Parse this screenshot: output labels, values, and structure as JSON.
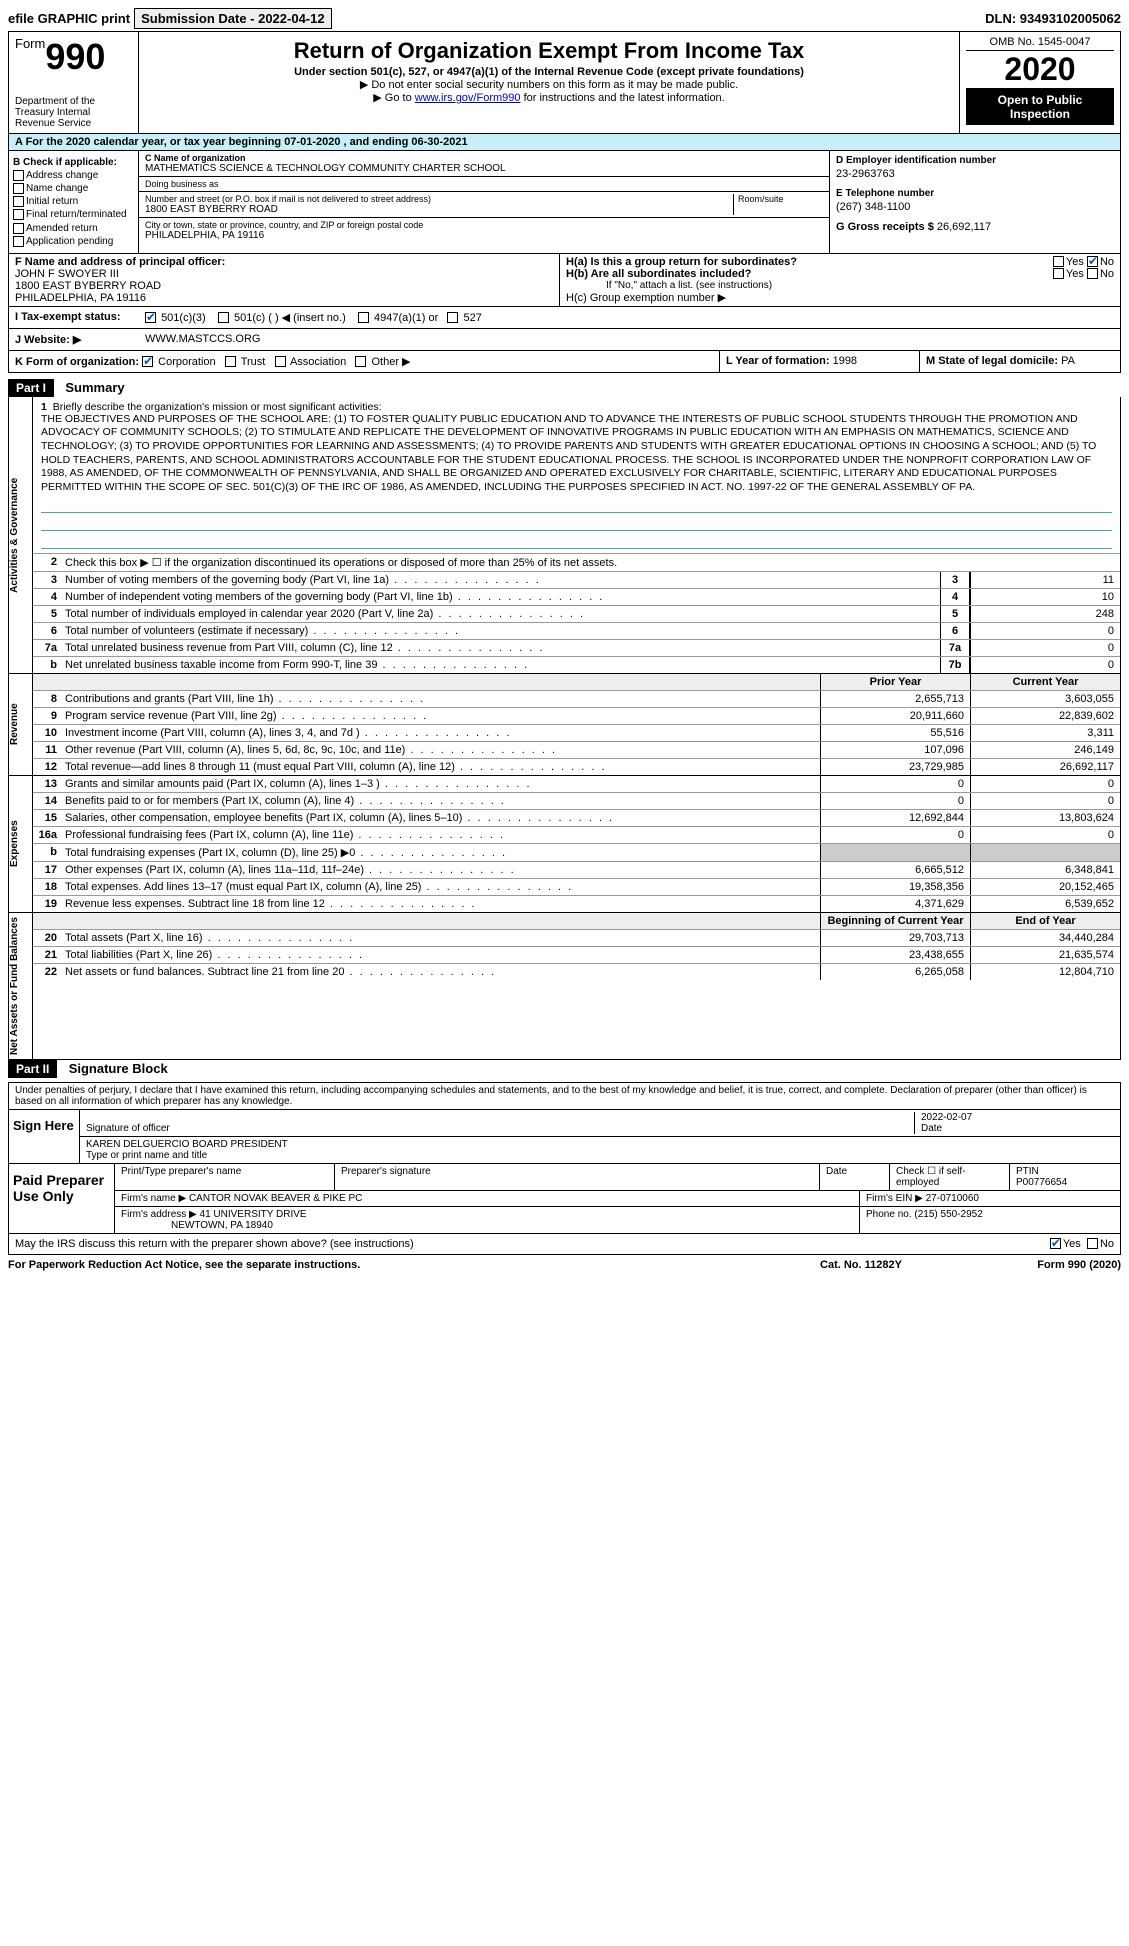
{
  "top": {
    "efile": "efile GRAPHIC print",
    "submission_label": "Submission Date - 2022-04-12",
    "dln": "DLN: 93493102005062"
  },
  "header": {
    "form_label": "Form",
    "form_no": "990",
    "title": "Return of Organization Exempt From Income Tax",
    "subtitle": "Under section 501(c), 527, or 4947(a)(1) of the Internal Revenue Code (except private foundations)",
    "note1": "▶ Do not enter social security numbers on this form as it may be made public.",
    "note2_pre": "▶ Go to ",
    "note2_link": "www.irs.gov/Form990",
    "note2_post": " for instructions and the latest information.",
    "dept": "Department of the Treasury\nInternal Revenue Service",
    "omb": "OMB No. 1545-0047",
    "year": "2020",
    "open": "Open to Public Inspection"
  },
  "period": "A For the 2020 calendar year, or tax year beginning 07-01-2020   , and ending 06-30-2021",
  "section_b": {
    "heading": "B Check if applicable:",
    "items": [
      "Address change",
      "Name change",
      "Initial return",
      "Final return/terminated",
      "Amended return",
      "Application pending"
    ]
  },
  "section_c": {
    "name_lbl": "C Name of organization",
    "name": "MATHEMATICS SCIENCE & TECHNOLOGY COMMUNITY CHARTER SCHOOL",
    "dba_lbl": "Doing business as",
    "dba": "",
    "addr_lbl": "Number and street (or P.O. box if mail is not delivered to street address)",
    "room_lbl": "Room/suite",
    "addr": "1800 EAST BYBERRY ROAD",
    "city_lbl": "City or town, state or province, country, and ZIP or foreign postal code",
    "city": "PHILADELPHIA, PA  19116"
  },
  "section_d": {
    "ein_lbl": "D Employer identification number",
    "ein": "23-2963763",
    "tel_lbl": "E Telephone number",
    "tel": "(267) 348-1100",
    "gross_lbl": "G Gross receipts $",
    "gross": "26,692,117"
  },
  "section_f": {
    "lbl": "F  Name and address of principal officer:",
    "name": "JOHN F SWOYER III",
    "addr1": "1800 EAST BYBERRY ROAD",
    "addr2": "PHILADELPHIA, PA  19116"
  },
  "section_h": {
    "ha": "H(a)  Is this a group return for subordinates?",
    "hb": "H(b)  Are all subordinates included?",
    "hb_note": "If \"No,\" attach a list. (see instructions)",
    "hc": "H(c)  Group exemption number ▶",
    "yes": "Yes",
    "no": "No"
  },
  "tax_status": {
    "lbl": "I  Tax-exempt status:",
    "opts": [
      "501(c)(3)",
      "501(c) (  ) ◀ (insert no.)",
      "4947(a)(1) or",
      "527"
    ]
  },
  "website": {
    "lbl": "J  Website: ▶",
    "val": "WWW.MASTCCS.ORG"
  },
  "k_row": {
    "k": "K Form of organization:",
    "opts": [
      "Corporation",
      "Trust",
      "Association",
      "Other ▶"
    ],
    "l_lbl": "L Year of formation:",
    "l_val": "1998",
    "m_lbl": "M State of legal domicile:",
    "m_val": "PA"
  },
  "part1": {
    "hdr": "Part I",
    "title": "Summary",
    "side_gov": "Activities & Governance",
    "side_rev": "Revenue",
    "side_exp": "Expenses",
    "side_net": "Net Assets or Fund Balances",
    "q1_lbl": "Briefly describe the organization's mission or most significant activities:",
    "q1_txt": "THE OBJECTIVES AND PURPOSES OF THE SCHOOL ARE: (1) TO FOSTER QUALITY PUBLIC EDUCATION AND TO ADVANCE THE INTERESTS OF PUBLIC SCHOOL STUDENTS THROUGH THE PROMOTION AND ADVOCACY OF COMMUNITY SCHOOLS; (2) TO STIMULATE AND REPLICATE THE DEVELOPMENT OF INNOVATIVE PROGRAMS IN PUBLIC EDUCATION WITH AN EMPHASIS ON MATHEMATICS, SCIENCE AND TECHNOLOGY; (3) TO PROVIDE OPPORTUNITIES FOR LEARNING AND ASSESSMENTS; (4) TO PROVIDE PARENTS AND STUDENTS WITH GREATER EDUCATIONAL OPTIONS IN CHOOSING A SCHOOL; AND (5) TO HOLD TEACHERS, PARENTS, AND SCHOOL ADMINISTRATORS ACCOUNTABLE FOR THE STUDENT EDUCATIONAL PROCESS. THE SCHOOL IS INCORPORATED UNDER THE NONPROFIT CORPORATION LAW OF 1988, AS AMENDED, OF THE COMMONWEALTH OF PENNSYLVANIA, AND SHALL BE ORGANIZED AND OPERATED EXCLUSIVELY FOR CHARITABLE, SCIENTIFIC, LITERARY AND EDUCATIONAL PURPOSES PERMITTED WITHIN THE SCOPE OF SEC. 501(C)(3) OF THE IRC OF 1986, AS AMENDED, INCLUDING THE PURPOSES SPECIFIED IN ACT. NO. 1997-22 OF THE GENERAL ASSEMBLY OF PA.",
    "q2": "Check this box ▶ ☐ if the organization discontinued its operations or disposed of more than 25% of its net assets.",
    "lines_gov": [
      {
        "no": "3",
        "desc": "Number of voting members of the governing body (Part VI, line 1a)",
        "box": "3",
        "val": "11"
      },
      {
        "no": "4",
        "desc": "Number of independent voting members of the governing body (Part VI, line 1b)",
        "box": "4",
        "val": "10"
      },
      {
        "no": "5",
        "desc": "Total number of individuals employed in calendar year 2020 (Part V, line 2a)",
        "box": "5",
        "val": "248"
      },
      {
        "no": "6",
        "desc": "Total number of volunteers (estimate if necessary)",
        "box": "6",
        "val": "0"
      },
      {
        "no": "7a",
        "desc": "Total unrelated business revenue from Part VIII, column (C), line 12",
        "box": "7a",
        "val": "0"
      },
      {
        "no": "b",
        "desc": "Net unrelated business taxable income from Form 990-T, line 39",
        "box": "7b",
        "val": "0"
      }
    ],
    "col_hdr_prior": "Prior Year",
    "col_hdr_curr": "Current Year",
    "lines_rev": [
      {
        "no": "8",
        "desc": "Contributions and grants (Part VIII, line 1h)",
        "prior": "2,655,713",
        "curr": "3,603,055"
      },
      {
        "no": "9",
        "desc": "Program service revenue (Part VIII, line 2g)",
        "prior": "20,911,660",
        "curr": "22,839,602"
      },
      {
        "no": "10",
        "desc": "Investment income (Part VIII, column (A), lines 3, 4, and 7d )",
        "prior": "55,516",
        "curr": "3,311"
      },
      {
        "no": "11",
        "desc": "Other revenue (Part VIII, column (A), lines 5, 6d, 8c, 9c, 10c, and 11e)",
        "prior": "107,096",
        "curr": "246,149"
      },
      {
        "no": "12",
        "desc": "Total revenue—add lines 8 through 11 (must equal Part VIII, column (A), line 12)",
        "prior": "23,729,985",
        "curr": "26,692,117"
      }
    ],
    "lines_exp": [
      {
        "no": "13",
        "desc": "Grants and similar amounts paid (Part IX, column (A), lines 1–3 )",
        "prior": "0",
        "curr": "0"
      },
      {
        "no": "14",
        "desc": "Benefits paid to or for members (Part IX, column (A), line 4)",
        "prior": "0",
        "curr": "0"
      },
      {
        "no": "15",
        "desc": "Salaries, other compensation, employee benefits (Part IX, column (A), lines 5–10)",
        "prior": "12,692,844",
        "curr": "13,803,624"
      },
      {
        "no": "16a",
        "desc": "Professional fundraising fees (Part IX, column (A), line 11e)",
        "prior": "0",
        "curr": "0"
      },
      {
        "no": "b",
        "desc": "Total fundraising expenses (Part IX, column (D), line 25) ▶0",
        "prior": "",
        "curr": "",
        "shade": true
      },
      {
        "no": "17",
        "desc": "Other expenses (Part IX, column (A), lines 11a–11d, 11f–24e)",
        "prior": "6,665,512",
        "curr": "6,348,841"
      },
      {
        "no": "18",
        "desc": "Total expenses. Add lines 13–17 (must equal Part IX, column (A), line 25)",
        "prior": "19,358,356",
        "curr": "20,152,465"
      },
      {
        "no": "19",
        "desc": "Revenue less expenses. Subtract line 18 from line 12",
        "prior": "4,371,629",
        "curr": "6,539,652"
      }
    ],
    "col_hdr_begin": "Beginning of Current Year",
    "col_hdr_end": "End of Year",
    "lines_net": [
      {
        "no": "20",
        "desc": "Total assets (Part X, line 16)",
        "prior": "29,703,713",
        "curr": "34,440,284"
      },
      {
        "no": "21",
        "desc": "Total liabilities (Part X, line 26)",
        "prior": "23,438,655",
        "curr": "21,635,574"
      },
      {
        "no": "22",
        "desc": "Net assets or fund balances. Subtract line 21 from line 20",
        "prior": "6,265,058",
        "curr": "12,804,710"
      }
    ]
  },
  "part2": {
    "hdr": "Part II",
    "title": "Signature Block",
    "decl": "Under penalties of perjury, I declare that I have examined this return, including accompanying schedules and statements, and to the best of my knowledge and belief, it is true, correct, and complete. Declaration of preparer (other than officer) is based on all information of which preparer has any knowledge.",
    "sign_here": "Sign Here",
    "sig_officer_lbl": "Signature of officer",
    "date_lbl": "Date",
    "date_val": "2022-02-07",
    "name_title": "KAREN DELGUERCIO  BOARD PRESIDENT",
    "name_title_lbl": "Type or print name and title",
    "paid_lbl": "Paid Preparer Use Only",
    "prep_name_lbl": "Print/Type preparer's name",
    "prep_sig_lbl": "Preparer's signature",
    "prep_date_lbl": "Date",
    "prep_self_lbl": "Check ☐ if self-employed",
    "ptin_lbl": "PTIN",
    "ptin": "P00776654",
    "firm_name_lbl": "Firm's name    ▶",
    "firm_name": "CANTOR NOVAK BEAVER & PIKE PC",
    "firm_ein_lbl": "Firm's EIN ▶",
    "firm_ein": "27-0710060",
    "firm_addr_lbl": "Firm's address ▶",
    "firm_addr1": "41 UNIVERSITY DRIVE",
    "firm_addr2": "NEWTOWN, PA  18940",
    "phone_lbl": "Phone no.",
    "phone": "(215) 550-2952",
    "discuss": "May the IRS discuss this return with the preparer shown above? (see instructions)",
    "yes": "Yes",
    "no": "No"
  },
  "footer": {
    "pra": "For Paperwork Reduction Act Notice, see the separate instructions.",
    "cat": "Cat. No. 11282Y",
    "form": "Form 990 (2020)"
  }
}
